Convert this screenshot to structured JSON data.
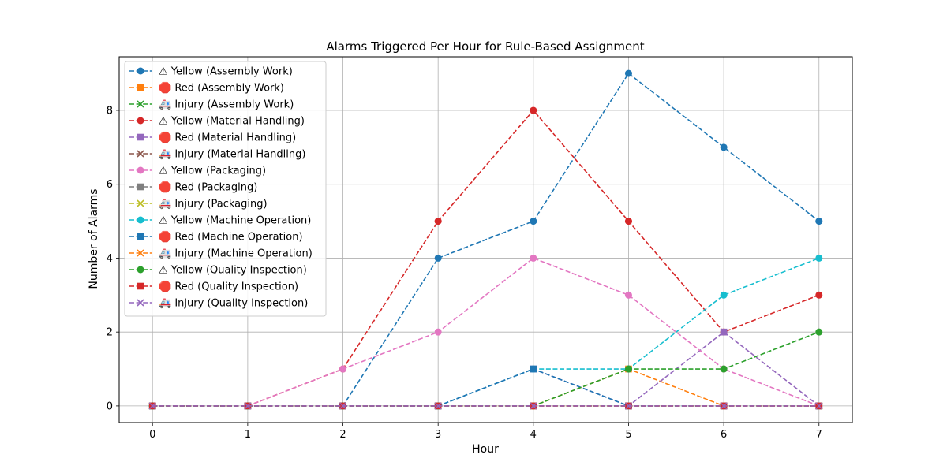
{
  "chart_data": {
    "type": "line",
    "title": "Alarms Triggered Per Hour for Rule-Based Assignment",
    "xlabel": "Hour",
    "ylabel": "Number of Alarms",
    "x": [
      0,
      1,
      2,
      3,
      4,
      5,
      6,
      7
    ],
    "xlim": [
      -0.35,
      7.35
    ],
    "ylim": [
      -0.45,
      9.45
    ],
    "xticks": [
      0,
      1,
      2,
      3,
      4,
      5,
      6,
      7
    ],
    "yticks": [
      0,
      2,
      4,
      6,
      8
    ],
    "grid": true,
    "legend_position": "top-left",
    "series": [
      {
        "name": "⚠ Yellow (Assembly Work)",
        "color": "#1f77b4",
        "marker": "circle",
        "values": [
          0,
          0,
          0,
          4,
          5,
          9,
          7,
          5
        ]
      },
      {
        "name": "🛑 Red (Assembly Work)",
        "color": "#ff7f0e",
        "marker": "square",
        "values": [
          0,
          0,
          0,
          0,
          0,
          1,
          0,
          0
        ]
      },
      {
        "name": "🚑 Injury (Assembly Work)",
        "color": "#2ca02c",
        "marker": "x",
        "values": [
          0,
          0,
          0,
          0,
          0,
          0,
          0,
          0
        ]
      },
      {
        "name": "⚠ Yellow (Material Handling)",
        "color": "#d62728",
        "marker": "circle",
        "values": [
          0,
          0,
          1,
          5,
          8,
          5,
          2,
          3
        ]
      },
      {
        "name": "🛑 Red (Material Handling)",
        "color": "#9467bd",
        "marker": "square",
        "values": [
          0,
          0,
          0,
          0,
          1,
          0,
          2,
          0
        ]
      },
      {
        "name": "🚑 Injury (Material Handling)",
        "color": "#8c564b",
        "marker": "x",
        "values": [
          0,
          0,
          0,
          0,
          0,
          0,
          0,
          0
        ]
      },
      {
        "name": "⚠ Yellow (Packaging)",
        "color": "#e377c2",
        "marker": "circle",
        "values": [
          0,
          0,
          1,
          2,
          4,
          3,
          1,
          0
        ]
      },
      {
        "name": "🛑 Red (Packaging)",
        "color": "#7f7f7f",
        "marker": "square",
        "values": [
          0,
          0,
          0,
          0,
          0,
          0,
          0,
          0
        ]
      },
      {
        "name": "🚑 Injury (Packaging)",
        "color": "#bcbd22",
        "marker": "x",
        "values": [
          0,
          0,
          0,
          0,
          0,
          0,
          0,
          0
        ]
      },
      {
        "name": "⚠ Yellow (Machine Operation)",
        "color": "#17becf",
        "marker": "circle",
        "values": [
          0,
          0,
          0,
          0,
          1,
          1,
          3,
          4
        ]
      },
      {
        "name": "🛑 Red (Machine Operation)",
        "color": "#1f77b4",
        "marker": "square",
        "values": [
          0,
          0,
          0,
          0,
          1,
          0,
          0,
          0
        ]
      },
      {
        "name": "🚑 Injury (Machine Operation)",
        "color": "#ff7f0e",
        "marker": "x",
        "values": [
          0,
          0,
          0,
          0,
          0,
          0,
          0,
          0
        ]
      },
      {
        "name": "⚠ Yellow (Quality Inspection)",
        "color": "#2ca02c",
        "marker": "circle",
        "values": [
          0,
          0,
          0,
          0,
          0,
          1,
          1,
          2
        ]
      },
      {
        "name": "🛑 Red (Quality Inspection)",
        "color": "#d62728",
        "marker": "square",
        "values": [
          0,
          0,
          0,
          0,
          0,
          0,
          0,
          0
        ]
      },
      {
        "name": "🚑 Injury (Quality Inspection)",
        "color": "#9467bd",
        "marker": "x",
        "values": [
          0,
          0,
          0,
          0,
          0,
          0,
          0,
          0
        ]
      }
    ]
  }
}
